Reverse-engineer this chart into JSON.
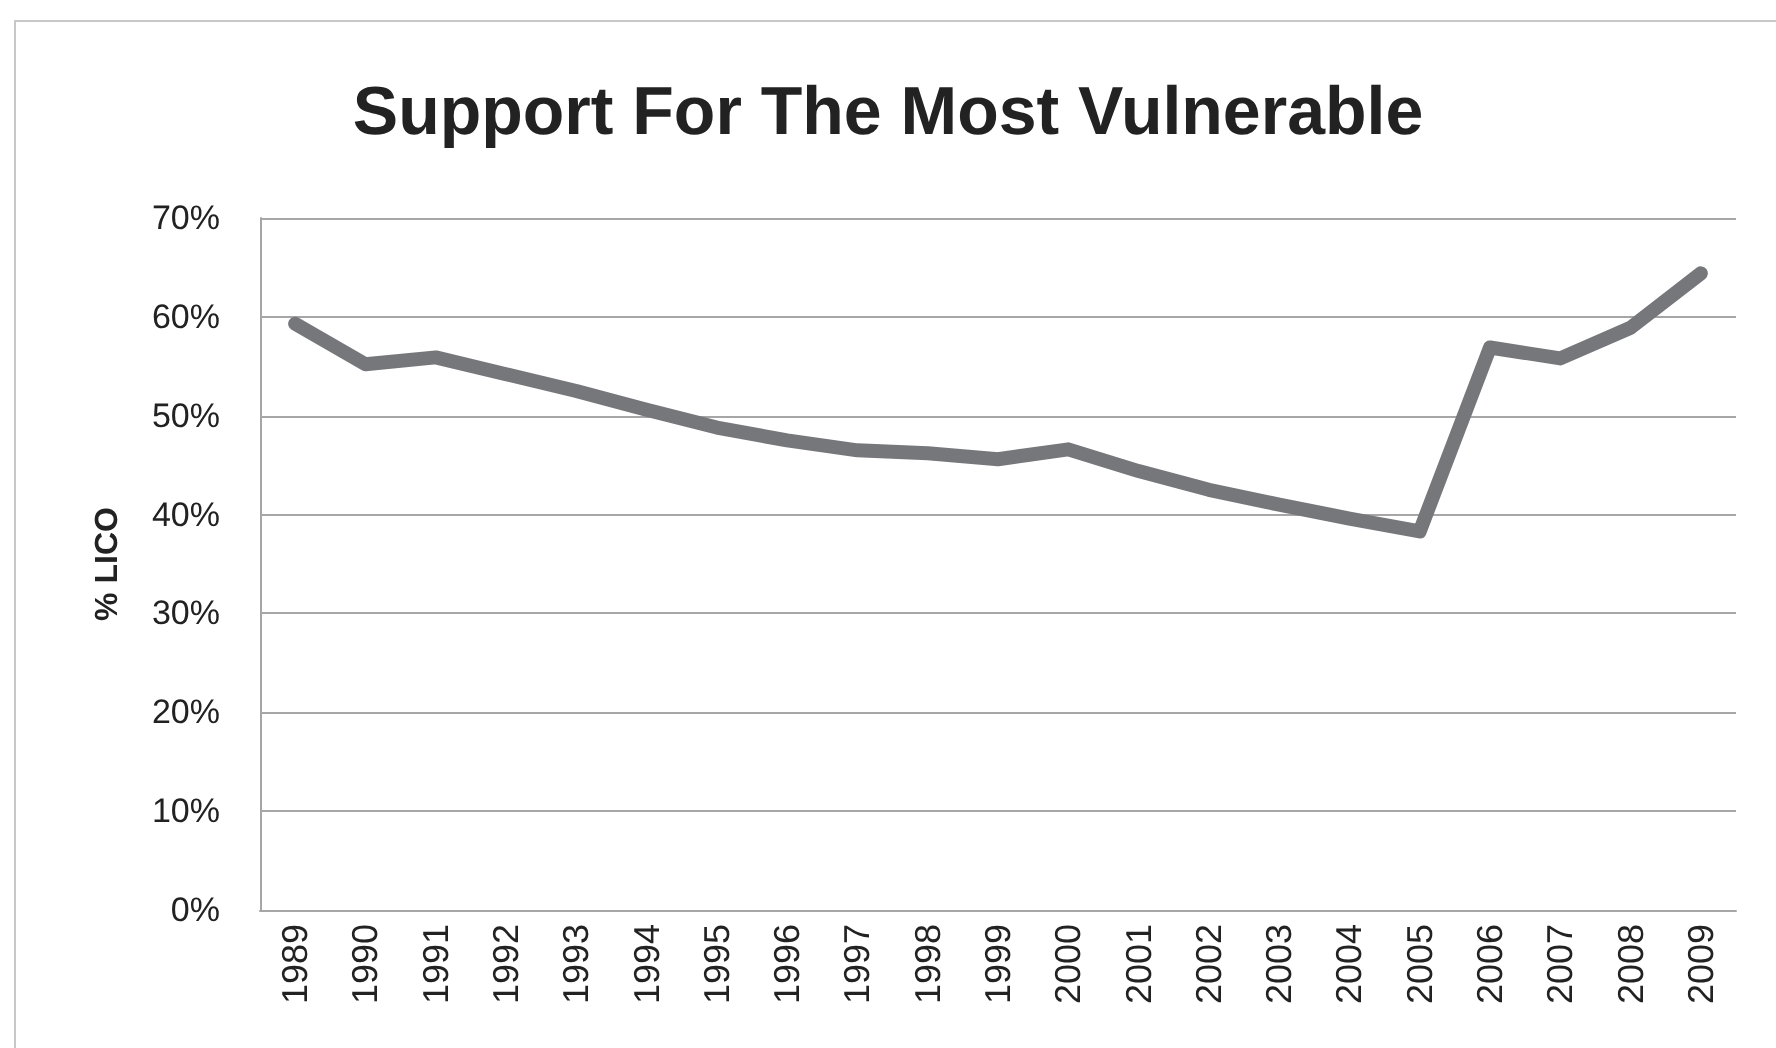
{
  "chart_data": {
    "type": "line",
    "title": "Support For The Most Vulnerable",
    "ylabel": "% LICO",
    "categories": [
      "1989",
      "1990",
      "1991",
      "1992",
      "1993",
      "1994",
      "1995",
      "1996",
      "1997",
      "1998",
      "1999",
      "2000",
      "2001",
      "2002",
      "2003",
      "2004",
      "2005",
      "2006",
      "2007",
      "2008",
      "2009"
    ],
    "series": [
      {
        "color": "#76777b",
        "values": [
          59.3,
          55.2,
          55.9,
          54.2,
          52.5,
          50.6,
          48.8,
          47.5,
          46.5,
          46.2,
          45.6,
          46.6,
          44.4,
          42.5,
          41,
          39.6,
          38.3,
          56.9,
          55.8,
          58.9,
          64.4
        ]
      }
    ],
    "ylim": [
      0,
      70
    ],
    "yticks": [
      {
        "value": 0,
        "label": "0%"
      },
      {
        "value": 10,
        "label": "10%"
      },
      {
        "value": 20,
        "label": "20%"
      },
      {
        "value": 30,
        "label": "30%"
      },
      {
        "value": 40,
        "label": "40%"
      },
      {
        "value": 50,
        "label": "50%"
      },
      {
        "value": 60,
        "label": "60%"
      },
      {
        "value": 70,
        "label": "70%"
      }
    ],
    "grid": "y",
    "line_style": "solid"
  }
}
